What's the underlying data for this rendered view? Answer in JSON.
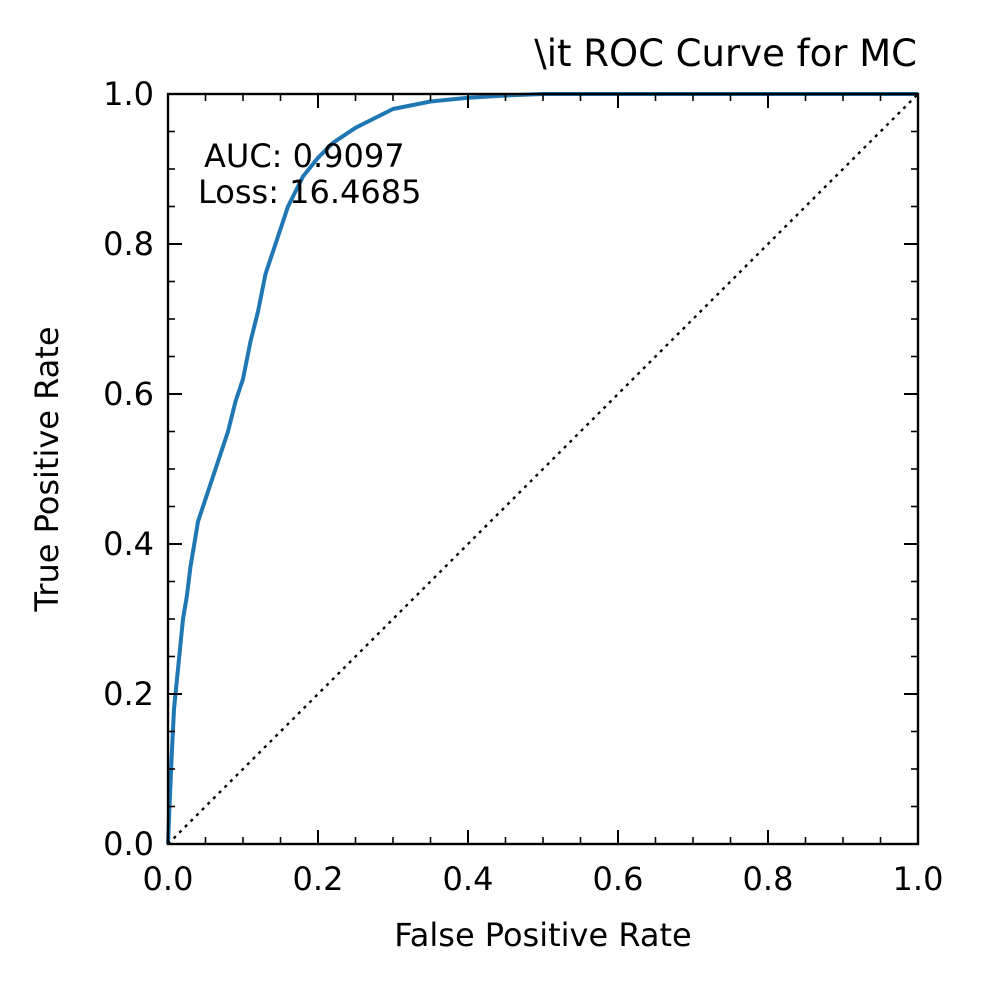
{
  "chart_data": {
    "type": "line",
    "title": "\\it ROC Curve for MC",
    "xlabel": "False Positive Rate",
    "ylabel": "True Positive Rate",
    "xlim": [
      0.0,
      1.0
    ],
    "ylim": [
      0.0,
      1.0
    ],
    "xticks": [
      "0.0",
      "0.2",
      "0.4",
      "0.6",
      "0.8",
      "1.0"
    ],
    "yticks": [
      "0.0",
      "0.2",
      "0.4",
      "0.6",
      "0.8",
      "1.0"
    ],
    "grid": false,
    "annotations": [
      "AUC: 0.9097",
      "Loss: 16.4685"
    ],
    "series": [
      {
        "color": "#1f77b4",
        "style": "solid",
        "x": [
          0.0,
          0.002,
          0.005,
          0.008,
          0.012,
          0.016,
          0.02,
          0.025,
          0.03,
          0.035,
          0.04,
          0.05,
          0.06,
          0.07,
          0.08,
          0.09,
          0.1,
          0.11,
          0.12,
          0.13,
          0.14,
          0.15,
          0.16,
          0.18,
          0.2,
          0.22,
          0.25,
          0.28,
          0.3,
          0.35,
          0.4,
          0.45,
          0.5,
          0.6,
          0.8,
          1.0
        ],
        "y": [
          0.0,
          0.05,
          0.12,
          0.18,
          0.22,
          0.26,
          0.3,
          0.33,
          0.37,
          0.4,
          0.43,
          0.46,
          0.49,
          0.52,
          0.55,
          0.59,
          0.62,
          0.67,
          0.71,
          0.76,
          0.79,
          0.82,
          0.85,
          0.89,
          0.915,
          0.935,
          0.955,
          0.97,
          0.98,
          0.99,
          0.995,
          0.998,
          1.0,
          1.0,
          1.0,
          1.0
        ]
      },
      {
        "color": "#000000",
        "style": "dotted",
        "x": [
          0.0,
          1.0
        ],
        "y": [
          0.0,
          1.0
        ]
      }
    ]
  }
}
